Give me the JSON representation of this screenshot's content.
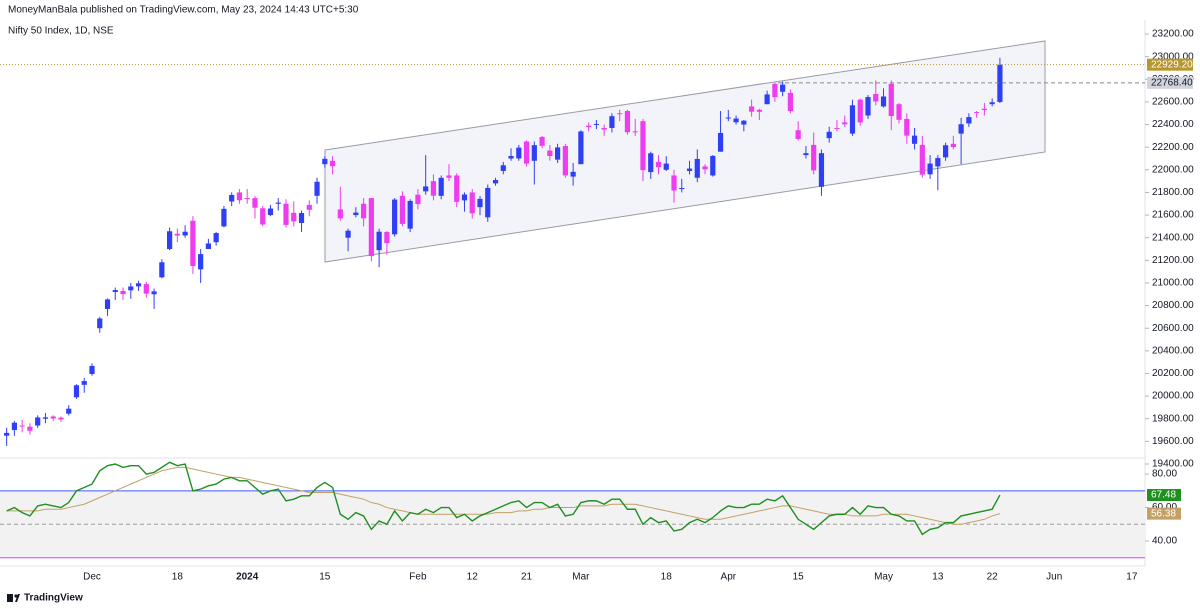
{
  "header": {
    "publisher": "MoneyManBala published on TradingView.com, May 23, 2024 14:43 UTC+5:30",
    "symbol": "Nifty 50 Index, 1D, NSE"
  },
  "footer": {
    "brand": "TradingView"
  },
  "chart_data": [
    {
      "type": "candlestick",
      "up_color": "#2f3ff5",
      "down_color": "#ee3cee",
      "grid": false,
      "ylim": [
        19453,
        23271
      ],
      "yticks": [
        {
          "value": 19400,
          "label": "19400.00"
        },
        {
          "value": 19600,
          "label": "19600.00"
        },
        {
          "value": 19800,
          "label": "19800.00"
        },
        {
          "value": 20000,
          "label": "20000.00"
        },
        {
          "value": 20200,
          "label": "20200.00"
        },
        {
          "value": 20400,
          "label": "20400.00"
        },
        {
          "value": 20600,
          "label": "20600.00"
        },
        {
          "value": 20800,
          "label": "20800.00"
        },
        {
          "value": 21000,
          "label": "21000.00"
        },
        {
          "value": 21200,
          "label": "21200.00"
        },
        {
          "value": 21400,
          "label": "21400.00"
        },
        {
          "value": 21600,
          "label": "21600.00"
        },
        {
          "value": 21800,
          "label": "21800.00"
        },
        {
          "value": 22000,
          "label": "22000.00"
        },
        {
          "value": 22200,
          "label": "22200.00"
        },
        {
          "value": 22400,
          "label": "22400.00"
        },
        {
          "value": 22600,
          "label": "22600.00"
        },
        {
          "value": 22800,
          "label": "22800.00"
        },
        {
          "value": 23000,
          "label": "23000.00"
        },
        {
          "value": 23200,
          "label": "23200.00"
        }
      ],
      "xticks": [
        {
          "value": 11,
          "label": "Dec"
        },
        {
          "value": 22,
          "label": "18"
        },
        {
          "value": 31,
          "label": "2024"
        },
        {
          "value": 41,
          "label": "15"
        },
        {
          "value": 53,
          "label": "Feb"
        },
        {
          "value": 60,
          "label": "12"
        },
        {
          "value": 67,
          "label": "21"
        },
        {
          "value": 74,
          "label": "Mar"
        },
        {
          "value": 85,
          "label": "18"
        },
        {
          "value": 93,
          "label": "Apr"
        },
        {
          "value": 102,
          "label": "15"
        },
        {
          "value": 113,
          "label": "May"
        },
        {
          "value": 120,
          "label": "13"
        },
        {
          "value": 127,
          "label": "22"
        },
        {
          "value": 135,
          "label": "Jun"
        },
        {
          "value": 145,
          "label": "17"
        }
      ],
      "last_label": "22929.20",
      "last_color": "#b8962e",
      "ref_line": {
        "value": 22768.4,
        "label": "22768.40"
      },
      "open": [
        19650,
        19700,
        19740,
        19730,
        19740,
        19800,
        19820,
        19810,
        19845,
        19990,
        20100,
        20195,
        20600,
        20770,
        20920,
        20930,
        20935,
        20970,
        20990,
        20900,
        21050,
        21300,
        21435,
        21420,
        21550,
        21120,
        21300,
        21360,
        21500,
        21720,
        21800,
        21750,
        21750,
        21660,
        21600,
        21700,
        21700,
        21620,
        21530,
        21690,
        21770,
        22050,
        22080,
        21650,
        21400,
        21600,
        21700,
        21750,
        21290,
        21450,
        21430,
        21770,
        21480,
        21780,
        21810,
        21900,
        21770,
        21950,
        21950,
        21730,
        21800,
        21670,
        21580,
        21880,
        21990,
        22100,
        22100,
        22250,
        22080,
        22290,
        22170,
        22090,
        22210,
        21940,
        22050,
        22390,
        22400,
        22370,
        22370,
        22500,
        22520,
        22340,
        22430,
        21980,
        22070,
        22000,
        21950,
        21830,
        21990,
        21930,
        22030,
        21950,
        22160,
        22460,
        22420,
        22400,
        22560,
        22530,
        22580,
        22760,
        22690,
        22680,
        22350,
        22130,
        22220,
        21850,
        22280,
        22370,
        22420,
        22320,
        22620,
        22480,
        22670,
        22560,
        22760,
        22580,
        22450,
        22230,
        22220,
        21960,
        22030,
        22110,
        22230,
        22320,
        22410,
        22510,
        22540,
        22580,
        22600
      ],
      "high": [
        19720,
        19780,
        19790,
        19760,
        19830,
        19850,
        19830,
        19820,
        19920,
        20105,
        20160,
        20290,
        20700,
        20864,
        20960,
        20960,
        21000,
        21020,
        21010,
        20950,
        21210,
        21490,
        21480,
        21510,
        21590,
        21300,
        21390,
        21450,
        21680,
        21800,
        21830,
        21830,
        21770,
        21680,
        21690,
        21750,
        21740,
        21720,
        21640,
        21730,
        21930,
        22120,
        22120,
        21850,
        21480,
        21670,
        21750,
        21750,
        21480,
        21460,
        21750,
        21810,
        21740,
        21830,
        22130,
        21960,
        21950,
        22050,
        21970,
        21800,
        21830,
        21770,
        21870,
        21930,
        22070,
        22190,
        22220,
        22260,
        22250,
        22300,
        22220,
        22230,
        22230,
        22060,
        22350,
        22420,
        22440,
        22400,
        22500,
        22530,
        22530,
        22450,
        22450,
        22160,
        22130,
        22120,
        22000,
        21920,
        22080,
        22180,
        22050,
        22130,
        22520,
        22530,
        22480,
        22440,
        22620,
        22540,
        22700,
        22770,
        22780,
        22710,
        22430,
        22210,
        22330,
        22180,
        22380,
        22440,
        22480,
        22620,
        22630,
        22660,
        22790,
        22720,
        22790,
        22590,
        22500,
        22370,
        22300,
        22130,
        22130,
        22240,
        22300,
        22460,
        22500,
        22520,
        22590,
        22630,
        22990
      ],
      "low": [
        19560,
        19650,
        19680,
        19660,
        19720,
        19760,
        19780,
        19770,
        19830,
        19975,
        20030,
        20180,
        20560,
        20710,
        20850,
        20850,
        20860,
        20930,
        20870,
        20770,
        21040,
        21290,
        21360,
        21400,
        21080,
        21000,
        21300,
        21330,
        21490,
        21680,
        21700,
        21700,
        21570,
        21500,
        21590,
        21640,
        21490,
        21500,
        21450,
        21590,
        21700,
        22020,
        21960,
        21550,
        21280,
        21580,
        21500,
        21190,
        21140,
        21250,
        21410,
        21500,
        21450,
        21650,
        21780,
        21730,
        21740,
        21900,
        21670,
        21630,
        21570,
        21600,
        21540,
        21860,
        21960,
        22080,
        22080,
        22030,
        21870,
        22190,
        22080,
        22060,
        21930,
        21860,
        22050,
        22340,
        22360,
        22300,
        22330,
        22430,
        22310,
        22300,
        21900,
        21920,
        21960,
        21990,
        21710,
        21800,
        21960,
        21890,
        21960,
        21940,
        22160,
        22430,
        22400,
        22340,
        22470,
        22440,
        22580,
        22600,
        22650,
        22500,
        22260,
        22100,
        21960,
        21770,
        22240,
        22340,
        22380,
        22300,
        22390,
        22450,
        22570,
        22550,
        22350,
        22410,
        22230,
        22180,
        21930,
        21920,
        21820,
        22080,
        22180,
        22050,
        22380,
        22460,
        22480,
        22560,
        22590
      ],
      "close": [
        19675,
        19765,
        19732,
        19694,
        19811,
        19812,
        19802,
        19794,
        19889,
        20096,
        20133,
        20267,
        20686,
        20855,
        20937,
        20901,
        20969,
        20997,
        20906,
        20926,
        21183,
        21457,
        21419,
        21453,
        21150,
        21255,
        21349,
        21441,
        21655,
        21778,
        21731,
        21742,
        21665,
        21517,
        21658,
        21710,
        21513,
        21544,
        21618,
        21647,
        21894,
        22097,
        22032,
        21571,
        21462,
        21622,
        21571,
        21238,
        21453,
        21352,
        21737,
        21522,
        21725,
        21697,
        21853,
        21771,
        21929,
        21930,
        21717,
        21782,
        21616,
        21743,
        21840,
        21910,
        22040,
        22122,
        22196,
        22055,
        22218,
        22212,
        22122,
        22198,
        21951,
        21982,
        22339,
        22378,
        22405,
        22356,
        22474,
        22493,
        22332,
        22335,
        21997,
        22146,
        22023,
        22055,
        21817,
        21839,
        22011,
        22096,
        22004,
        22123,
        22326,
        22462,
        22453,
        22434,
        22514,
        22513,
        22666,
        22642,
        22753,
        22519,
        22272,
        22147,
        21995,
        22147,
        22336,
        22368,
        22402,
        22570,
        22419,
        22643,
        22604,
        22648,
        22475,
        22442,
        22302,
        22302,
        21957,
        22055,
        22104,
        22217,
        22201,
        22403,
        22466,
        22502,
        22529,
        22597,
        22929.2
      ]
    },
    {
      "type": "line",
      "ylim": [
        25.1,
        89.6
      ],
      "yticks": [
        {
          "value": 40,
          "label": "40.00"
        },
        {
          "value": 60,
          "label": "60.00"
        },
        {
          "value": 80,
          "label": "80.00"
        }
      ],
      "levels": [
        {
          "value": 70,
          "color": "#3d5afe",
          "dashed": false
        },
        {
          "value": 50,
          "color": "#9e9e9e",
          "dashed": true
        },
        {
          "value": 30,
          "color": "#e040fb",
          "dashed": false
        }
      ],
      "series": [
        {
          "color": "#1f8f1f",
          "values": [
            58,
            60,
            57,
            55,
            61,
            62,
            61,
            60,
            63,
            70,
            72,
            74,
            82,
            85,
            86,
            84,
            85,
            85,
            80,
            81,
            84,
            87,
            85,
            86,
            70,
            71,
            73,
            74,
            77,
            78,
            76,
            76,
            72,
            68,
            70,
            71,
            64,
            65,
            67,
            67,
            72,
            75,
            72,
            56,
            53,
            57,
            55,
            47,
            52,
            50,
            58,
            52,
            57,
            56,
            59,
            57,
            60,
            60,
            54,
            56,
            52,
            55,
            57,
            59,
            61,
            63,
            64,
            60,
            63,
            63,
            60,
            62,
            55,
            56,
            63,
            64,
            64,
            62,
            65,
            65,
            59,
            59,
            50,
            54,
            51,
            52,
            46,
            47,
            51,
            53,
            51,
            54,
            58,
            61,
            60,
            60,
            62,
            62,
            65,
            64,
            67,
            60,
            53,
            50,
            47,
            51,
            55,
            56,
            56,
            60,
            56,
            61,
            60,
            60,
            56,
            55,
            52,
            52,
            44,
            47,
            48,
            51,
            51,
            55,
            56,
            57,
            58,
            59,
            67.48
          ]
        },
        {
          "color": "#c4a066",
          "values": [
            58,
            58,
            58,
            58,
            58,
            59,
            59,
            59,
            60,
            61,
            62,
            64,
            66,
            68,
            70,
            72,
            74,
            76,
            78,
            80,
            82,
            83,
            84,
            84,
            83,
            82,
            81,
            80,
            79,
            78,
            78,
            77,
            76,
            75,
            74,
            73,
            72,
            71,
            70,
            69,
            69,
            69,
            69,
            68,
            67,
            66,
            65,
            63,
            62,
            60,
            59,
            58,
            57,
            56,
            56,
            56,
            56,
            56,
            56,
            56,
            56,
            56,
            56,
            57,
            57,
            57,
            58,
            58,
            59,
            59,
            60,
            60,
            60,
            60,
            61,
            61,
            61,
            61,
            62,
            62,
            62,
            62,
            61,
            60,
            59,
            58,
            57,
            56,
            55,
            54,
            53,
            53,
            53,
            54,
            55,
            56,
            57,
            58,
            59,
            60,
            61,
            61,
            60,
            59,
            58,
            57,
            56,
            56,
            56,
            55,
            55,
            55,
            55,
            56,
            56,
            56,
            56,
            55,
            54,
            53,
            52,
            51,
            50,
            50,
            51,
            52,
            53,
            55,
            56.38
          ]
        }
      ]
    }
  ]
}
